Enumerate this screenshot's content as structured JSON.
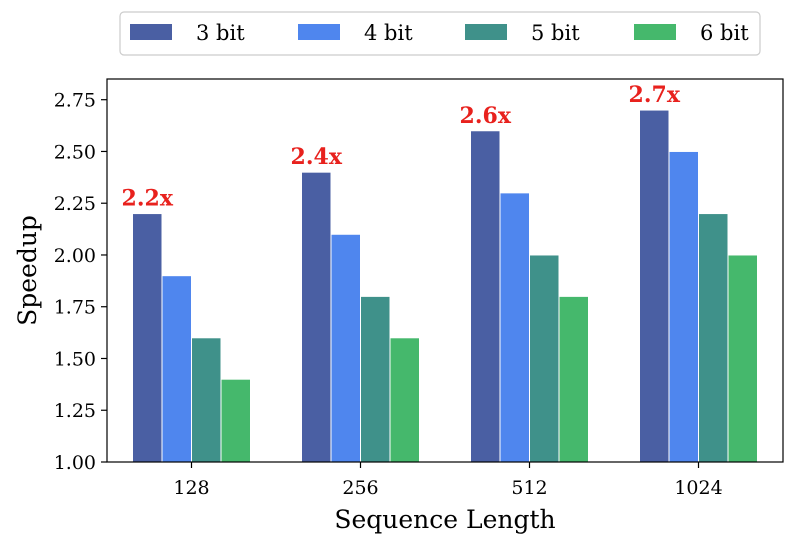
{
  "chart_data": {
    "type": "bar",
    "title": "",
    "xlabel": "Sequence Length",
    "ylabel": "Speedup",
    "categories": [
      "128",
      "256",
      "512",
      "1024"
    ],
    "series": [
      {
        "name": "3 bit",
        "color": "#4a5fa3",
        "values": [
          2.2,
          2.4,
          2.6,
          2.7
        ]
      },
      {
        "name": "4 bit",
        "color": "#4f86ee",
        "values": [
          1.9,
          2.1,
          2.3,
          2.5
        ]
      },
      {
        "name": "5 bit",
        "color": "#3f918a",
        "values": [
          1.6,
          1.8,
          2.0,
          2.2
        ]
      },
      {
        "name": "6 bit",
        "color": "#45b86c",
        "values": [
          1.4,
          1.6,
          1.8,
          2.0
        ]
      }
    ],
    "ylim": [
      1.0,
      2.85
    ],
    "yticks": [
      "1.00",
      "1.25",
      "1.50",
      "1.75",
      "2.00",
      "2.25",
      "2.50",
      "2.75"
    ],
    "annotations": [
      {
        "category": "128",
        "text": "2.2x",
        "value": 2.2
      },
      {
        "category": "256",
        "text": "2.4x",
        "value": 2.4
      },
      {
        "category": "512",
        "text": "2.6x",
        "value": 2.6
      },
      {
        "category": "1024",
        "text": "2.7x",
        "value": 2.7
      }
    ],
    "annotation_color": "#e8211d",
    "legend": {
      "placement": "top-center",
      "columns": 4
    },
    "grid": false
  }
}
